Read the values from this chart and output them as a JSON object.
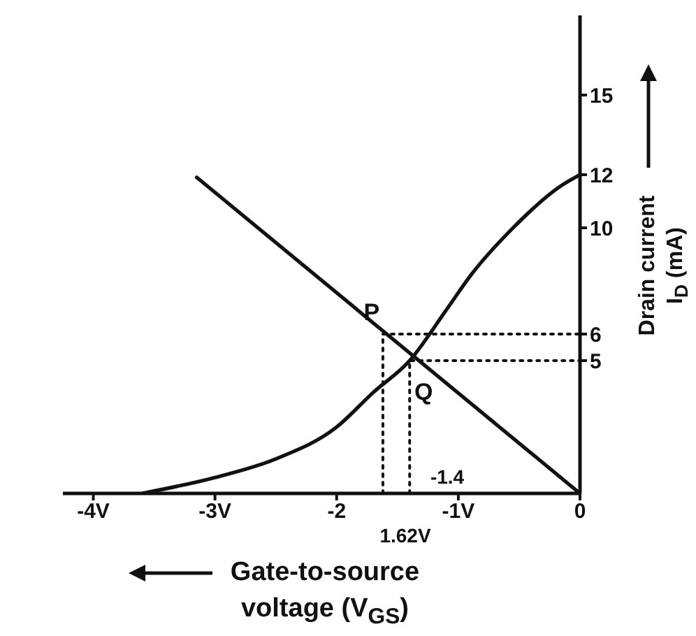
{
  "chart_data": {
    "type": "line",
    "xlabel": "Gate-to-source voltage (V$_{GS}$)",
    "ylabel": "Drain current I$_{D}$ (mA)",
    "xlim": [
      -4.25,
      0
    ],
    "xticks": [
      {
        "value": -4,
        "label": "-4V"
      },
      {
        "value": -3,
        "label": "-3V"
      },
      {
        "value": -2,
        "label": "-2"
      },
      {
        "value": -1,
        "label": "-1V"
      },
      {
        "value": 0,
        "label": "0"
      }
    ],
    "ylim": [
      0,
      18
    ],
    "yticks": [
      5,
      6,
      10,
      12,
      15
    ],
    "series": [
      {
        "type": "line",
        "color": "#111111",
        "line_style": "solid",
        "x": [
          -3.6,
          -3.0,
          -2.5,
          -2.0,
          -1.7,
          -1.4,
          -1.1,
          -0.9,
          -0.55,
          -0.15,
          0
        ],
        "values": [
          0,
          0.6,
          1.3,
          2.5,
          3.8,
          5,
          6.9,
          8.2,
          10,
          11.6,
          12
        ]
      },
      {
        "type": "line",
        "color": "#111111",
        "line_style": "solid",
        "x": [
          -3.15,
          0
        ],
        "values": [
          11.9,
          0
        ]
      },
      {
        "type": "line",
        "color": "#111111",
        "line_style": "dotted",
        "x": [
          -1.62,
          -1.62,
          0
        ],
        "values": [
          0,
          6,
          6
        ]
      },
      {
        "type": "line",
        "color": "#111111",
        "line_style": "dotted",
        "x": [
          -1.4,
          -1.4,
          0
        ],
        "values": [
          0,
          5,
          5
        ]
      }
    ],
    "annotations": [
      {
        "text": "P",
        "x": -1.62,
        "y": 6
      },
      {
        "text": "Q",
        "x": -1.4,
        "y": 5
      },
      "-1.4",
      "1.62V"
    ]
  }
}
